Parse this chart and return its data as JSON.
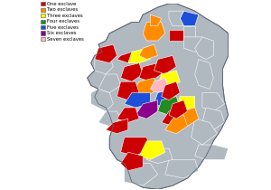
{
  "legend_entries": [
    {
      "label": "One exclave",
      "color": "#cc0000"
    },
    {
      "label": "Two exclaves",
      "color": "#ff8c00"
    },
    {
      "label": "Three exclaves",
      "color": "#ffff00"
    },
    {
      "label": "Four exclaves",
      "color": "#228b22"
    },
    {
      "label": "Five exclaves",
      "color": "#1e4fd8"
    },
    {
      "label": "Six exclaves",
      "color": "#8b008b"
    },
    {
      "label": "Seven exclaves",
      "color": "#ffb6c1"
    }
  ],
  "background_color": "#ffffff",
  "map_bg": "#b0b8c0",
  "border_color": "#606878",
  "fig_width": 3.0,
  "fig_height": 2.1,
  "dpi": 100
}
